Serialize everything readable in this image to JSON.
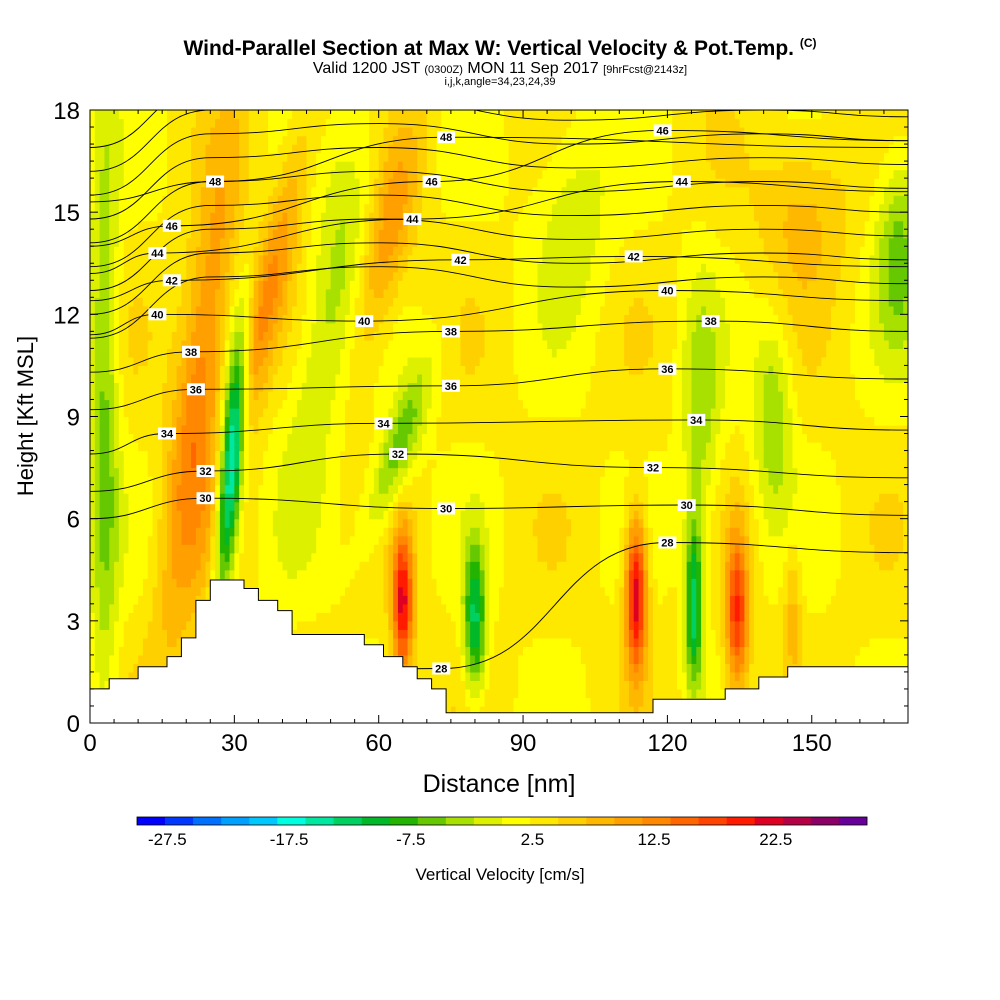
{
  "header": {
    "title": "Wind-Parallel Section at Max W: Vertical Velocity & Pot.Temp.",
    "title_unit": "(C)",
    "subtitle_pre": "Valid 1200 JST",
    "subtitle_z": "(0300Z)",
    "subtitle_mid": "MON 11 Sep 2017",
    "subtitle_fcst": "[9hrFcst@2143z]",
    "subtitle2": "i,j,k,angle=34,23,24,39"
  },
  "chart_data": {
    "type": "heatmap",
    "xlabel": "Distance [nm]",
    "ylabel": "Height [Kft MSL]",
    "xlim": [
      0,
      170
    ],
    "ylim": [
      0,
      18
    ],
    "x_ticks": [
      0,
      30,
      60,
      90,
      120,
      150
    ],
    "y_ticks": [
      0,
      3,
      6,
      9,
      12,
      15,
      18
    ],
    "x_tick_labels": [
      "0",
      "30",
      "60",
      "90",
      "120",
      "150"
    ],
    "y_tick_labels": [
      "0",
      "3",
      "6",
      "9",
      "12",
      "15",
      "18"
    ],
    "terrain": [
      [
        0,
        1
      ],
      [
        4,
        1
      ],
      [
        4,
        1.3
      ],
      [
        10,
        1.3
      ],
      [
        10,
        1.65
      ],
      [
        16,
        1.65
      ],
      [
        16,
        1.95
      ],
      [
        19,
        1.95
      ],
      [
        19,
        2.5
      ],
      [
        22,
        2.5
      ],
      [
        22,
        3.6
      ],
      [
        25,
        3.6
      ],
      [
        25,
        4.2
      ],
      [
        32,
        4.2
      ],
      [
        32,
        3.95
      ],
      [
        35,
        3.95
      ],
      [
        35,
        3.6
      ],
      [
        39,
        3.6
      ],
      [
        39,
        3.3
      ],
      [
        42,
        3.3
      ],
      [
        42,
        2.6
      ],
      [
        57,
        2.6
      ],
      [
        57,
        2.3
      ],
      [
        61,
        2.3
      ],
      [
        61,
        1.95
      ],
      [
        65,
        1.95
      ],
      [
        65,
        1.65
      ],
      [
        68,
        1.65
      ],
      [
        68,
        1.3
      ],
      [
        71,
        1.3
      ],
      [
        71,
        1
      ],
      [
        74,
        1
      ],
      [
        74,
        0.3
      ],
      [
        117,
        0.3
      ],
      [
        117,
        0.7
      ],
      [
        132,
        0.7
      ],
      [
        132,
        1
      ],
      [
        139,
        1
      ],
      [
        139,
        1.35
      ],
      [
        145,
        1.35
      ],
      [
        145,
        1.65
      ],
      [
        170,
        1.65
      ]
    ],
    "colorbar": {
      "label": "Vertical Velocity [cm/s]",
      "tick_labels": [
        "-27.5",
        "-17.5",
        "-7.5",
        "2.5",
        "12.5",
        "22.5"
      ],
      "tick_values": [
        -27.5,
        -17.5,
        -7.5,
        2.5,
        12.5,
        22.5
      ],
      "range": [
        -30,
        30
      ],
      "step": 2.5,
      "colors": [
        "#0000ff",
        "#0038ff",
        "#0070ff",
        "#00a0ff",
        "#00c8ff",
        "#00ffe0",
        "#00e8a0",
        "#00d060",
        "#00b828",
        "#22b400",
        "#66c800",
        "#a8e000",
        "#ddf000",
        "#ffff00",
        "#ffe800",
        "#ffd000",
        "#ffb800",
        "#ffa000",
        "#ff8800",
        "#ff6600",
        "#ff4400",
        "#ff1a00",
        "#dd0022",
        "#b40044",
        "#8a0066",
        "#660099"
      ]
    },
    "theta_contours": {
      "unit": "C",
      "label_points": [
        {
          "x": 73,
          "y": 1.6,
          "text": "28"
        },
        {
          "x": 120,
          "y": 5.3,
          "text": "28"
        },
        {
          "x": 24,
          "y": 6.6,
          "text": "30"
        },
        {
          "x": 74,
          "y": 6.3,
          "text": "30"
        },
        {
          "x": 124,
          "y": 6.4,
          "text": "30"
        },
        {
          "x": 24,
          "y": 7.4,
          "text": "32"
        },
        {
          "x": 64,
          "y": 7.9,
          "text": "32"
        },
        {
          "x": 117,
          "y": 7.5,
          "text": "32"
        },
        {
          "x": 16,
          "y": 8.5,
          "text": "34"
        },
        {
          "x": 61,
          "y": 8.8,
          "text": "34"
        },
        {
          "x": 126,
          "y": 8.9,
          "text": "34"
        },
        {
          "x": 22,
          "y": 9.8,
          "text": "36"
        },
        {
          "x": 75,
          "y": 9.9,
          "text": "36"
        },
        {
          "x": 120,
          "y": 10.4,
          "text": "36"
        },
        {
          "x": 21,
          "y": 10.9,
          "text": "38"
        },
        {
          "x": 75,
          "y": 11.5,
          "text": "38"
        },
        {
          "x": 129,
          "y": 11.8,
          "text": "38"
        },
        {
          "x": 14,
          "y": 12.0,
          "text": "40"
        },
        {
          "x": 57,
          "y": 11.8,
          "text": "40"
        },
        {
          "x": 120,
          "y": 12.7,
          "text": "40"
        },
        {
          "x": 17,
          "y": 13.0,
          "text": "42"
        },
        {
          "x": 77,
          "y": 13.6,
          "text": "42"
        },
        {
          "x": 113,
          "y": 13.7,
          "text": "42"
        },
        {
          "x": 14,
          "y": 13.8,
          "text": "44"
        },
        {
          "x": 67,
          "y": 14.8,
          "text": "44"
        },
        {
          "x": 123,
          "y": 15.9,
          "text": "44"
        },
        {
          "x": 17,
          "y": 14.6,
          "text": "46"
        },
        {
          "x": 71,
          "y": 15.9,
          "text": "46"
        },
        {
          "x": 119,
          "y": 17.4,
          "text": "46"
        },
        {
          "x": 26,
          "y": 15.9,
          "text": "48"
        },
        {
          "x": 74,
          "y": 17.2,
          "text": "48"
        }
      ]
    }
  }
}
